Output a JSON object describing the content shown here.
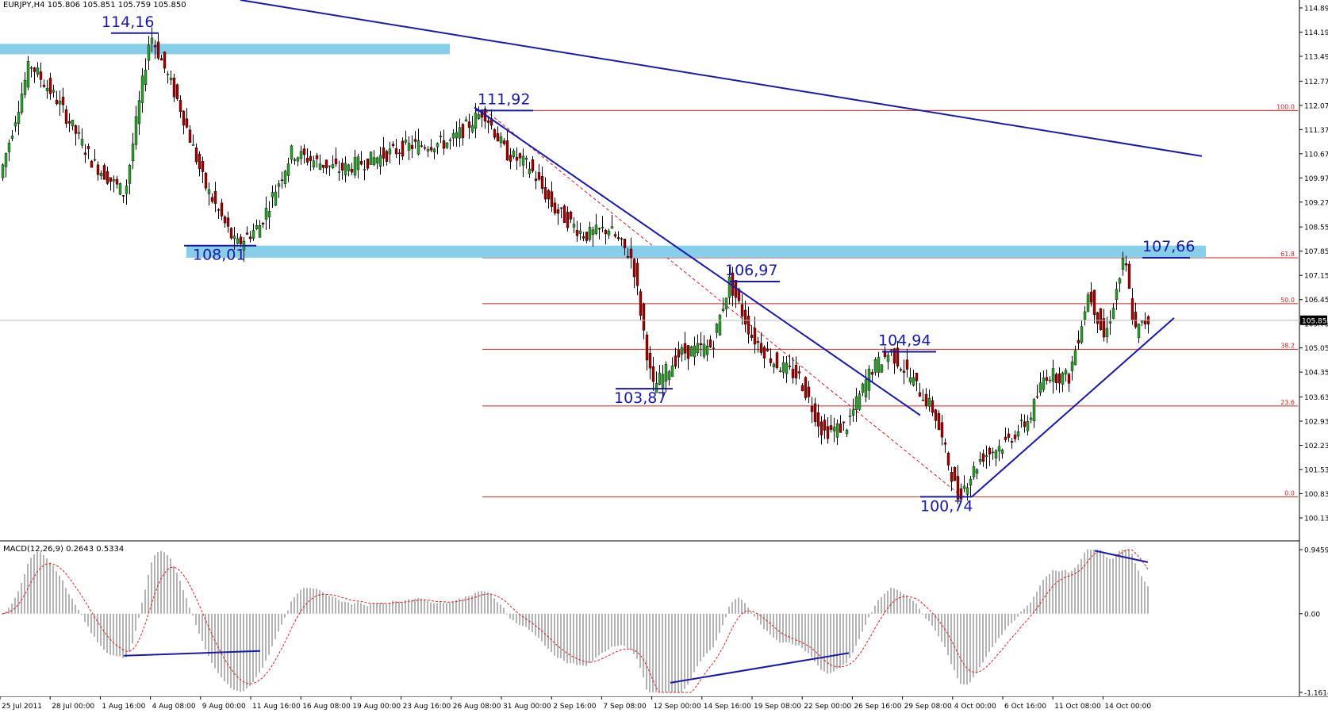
{
  "window": {
    "symbol": "EURJPY",
    "timeframe": "H4",
    "quote_text": "EURJPY,H4  105.806 105.851 105.759 105.850"
  },
  "colors": {
    "background": "#ffffff",
    "bull": "#2ca02c",
    "bear": "#a00000",
    "wick": "#000000",
    "trendline": "#1a1aa8",
    "fib_line": "#cc2222",
    "zone": "#87ceeb",
    "macd_hist": "#b4b4b4",
    "macd_signal": "#dd2222",
    "label": "#1a1aa8"
  },
  "price_axis": {
    "ticks": [
      "114.890",
      "114.190",
      "113.490",
      "112.770",
      "112.070",
      "111.370",
      "110.670",
      "109.970",
      "109.270",
      "108.550",
      "107.850",
      "107.150",
      "106.450",
      "105.750",
      "105.050",
      "104.350",
      "103.630",
      "102.930",
      "102.230",
      "101.530",
      "100.830",
      "100.130"
    ],
    "current_price": "105.850"
  },
  "macd_axis": {
    "ticks": [
      "0.9459",
      "0.00",
      "-1.1614"
    ]
  },
  "date_axis": {
    "labels": [
      "25 Jul 2011",
      "28 Jul 00:00",
      "1 Aug 16:00",
      "4 Aug 08:00",
      "9 Aug 00:00",
      "11 Aug 16:00",
      "16 Aug 08:00",
      "19 Aug 00:00",
      "23 Aug 16:00",
      "26 Aug 08:00",
      "31 Aug 00:00",
      "2 Sep 16:00",
      "7 Sep 08:00",
      "12 Sep 00:00",
      "14 Sep 16:00",
      "19 Sep 08:00",
      "22 Sep 00:00",
      "26 Sep 16:00",
      "29 Sep 08:00",
      "4 Oct 00:00",
      "6 Oct 16:00",
      "11 Oct 08:00",
      "14 Oct 00:00"
    ]
  },
  "indicator": {
    "label": "MACD(12,26,9) 0.2643 0.5334"
  },
  "fib_levels": [
    "100.0",
    "61.8",
    "50.0",
    "38.2",
    "23.6",
    "0.0"
  ],
  "annotations": [
    "114,16",
    "111,92",
    "108,01",
    "106,97",
    "103,87",
    "104,94",
    "100,74",
    "107,66"
  ],
  "chart_data": [
    {
      "type": "candlestick",
      "symbol": "EURJPY",
      "timeframe": "H4",
      "ylim": [
        100.13,
        114.89
      ],
      "key_points": [
        {
          "x": "4 Aug 2011",
          "y": 114.16
        },
        {
          "x": "11 Aug 2011",
          "y": 108.01
        },
        {
          "x": "29 Aug 2011",
          "y": 111.92
        },
        {
          "x": "12 Sep 2011",
          "y": 103.87
        },
        {
          "x": "15 Sep 2011",
          "y": 106.97
        },
        {
          "x": "27 Sep 2011",
          "y": 104.94
        },
        {
          "x": "4 Oct 2011",
          "y": 100.74
        },
        {
          "x": "14 Oct 2011",
          "y": 107.66
        }
      ],
      "last": {
        "open": 105.806,
        "high": 105.851,
        "low": 105.759,
        "close": 105.85
      },
      "fibonacci": [
        {
          "level": "100.0",
          "price": 111.92
        },
        {
          "level": "61.8",
          "price": 107.66
        },
        {
          "level": "50.0",
          "price": 106.33
        },
        {
          "level": "38.2",
          "price": 105.01
        },
        {
          "level": "23.6",
          "price": 103.37
        },
        {
          "level": "0.0",
          "price": 100.74
        }
      ],
      "resistance_zones": [
        [
          113.55,
          113.85
        ],
        [
          107.66,
          108.01
        ]
      ]
    },
    {
      "type": "bar",
      "name": "MACD(12,26,9)",
      "ylim": [
        -1.1614,
        0.9459
      ],
      "last_macd": 0.2643,
      "last_signal": 0.5334
    }
  ]
}
